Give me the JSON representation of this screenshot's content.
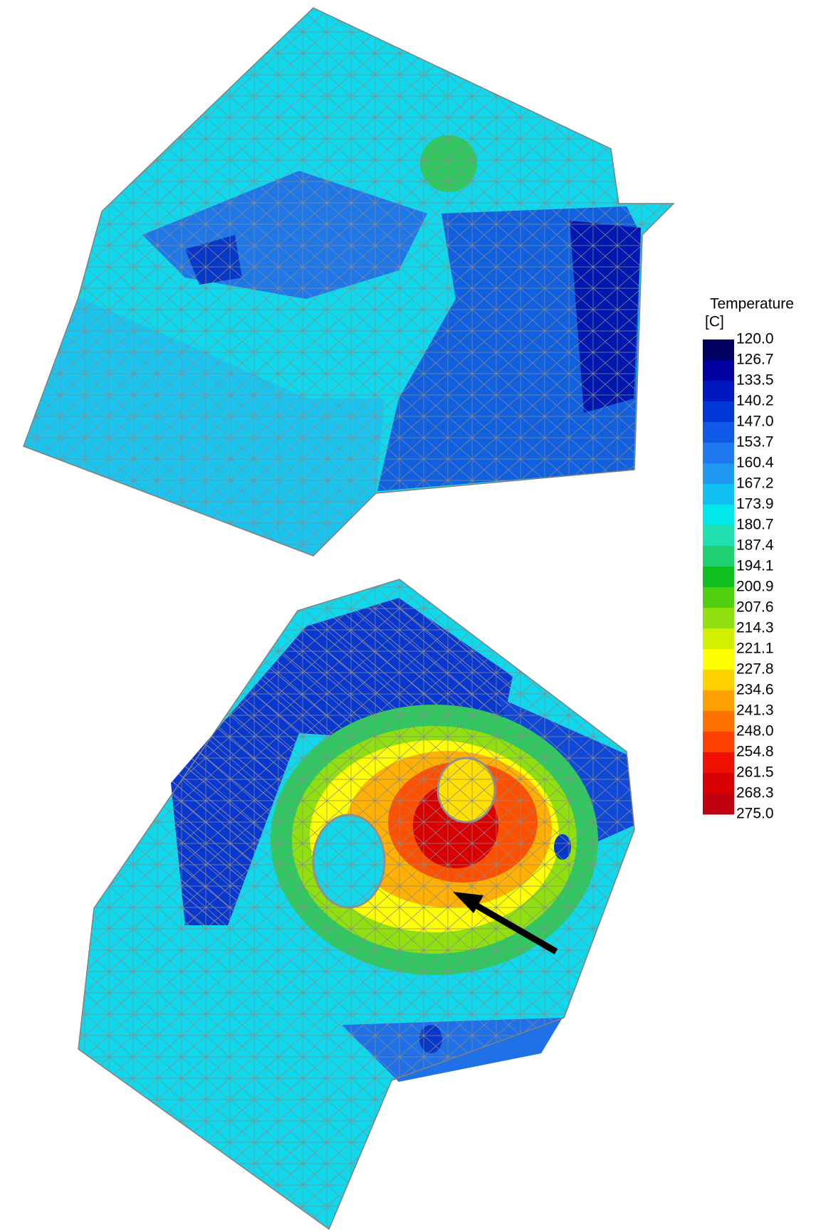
{
  "legend": {
    "title": "Temperature",
    "unit": "[C]",
    "labels": [
      "120.0",
      "126.7",
      "133.5",
      "140.2",
      "147.0",
      "153.7",
      "160.4",
      "167.2",
      "173.9",
      "180.7",
      "187.4",
      "194.1",
      "200.9",
      "207.6",
      "214.3",
      "221.1",
      "227.8",
      "234.6",
      "241.3",
      "248.0",
      "254.8",
      "261.5",
      "268.3",
      "275.0"
    ],
    "colors": [
      "#00005e",
      "#0000a0",
      "#0018c0",
      "#0038d8",
      "#1058e8",
      "#2078f0",
      "#2098f0",
      "#10c0f0",
      "#00e8ec",
      "#20e0b0",
      "#20d070",
      "#10c020",
      "#50d010",
      "#90e010",
      "#d0f000",
      "#ffff00",
      "#ffd000",
      "#ffa000",
      "#ff7000",
      "#ff4000",
      "#f01000",
      "#d80000",
      "#c00010"
    ]
  }
}
